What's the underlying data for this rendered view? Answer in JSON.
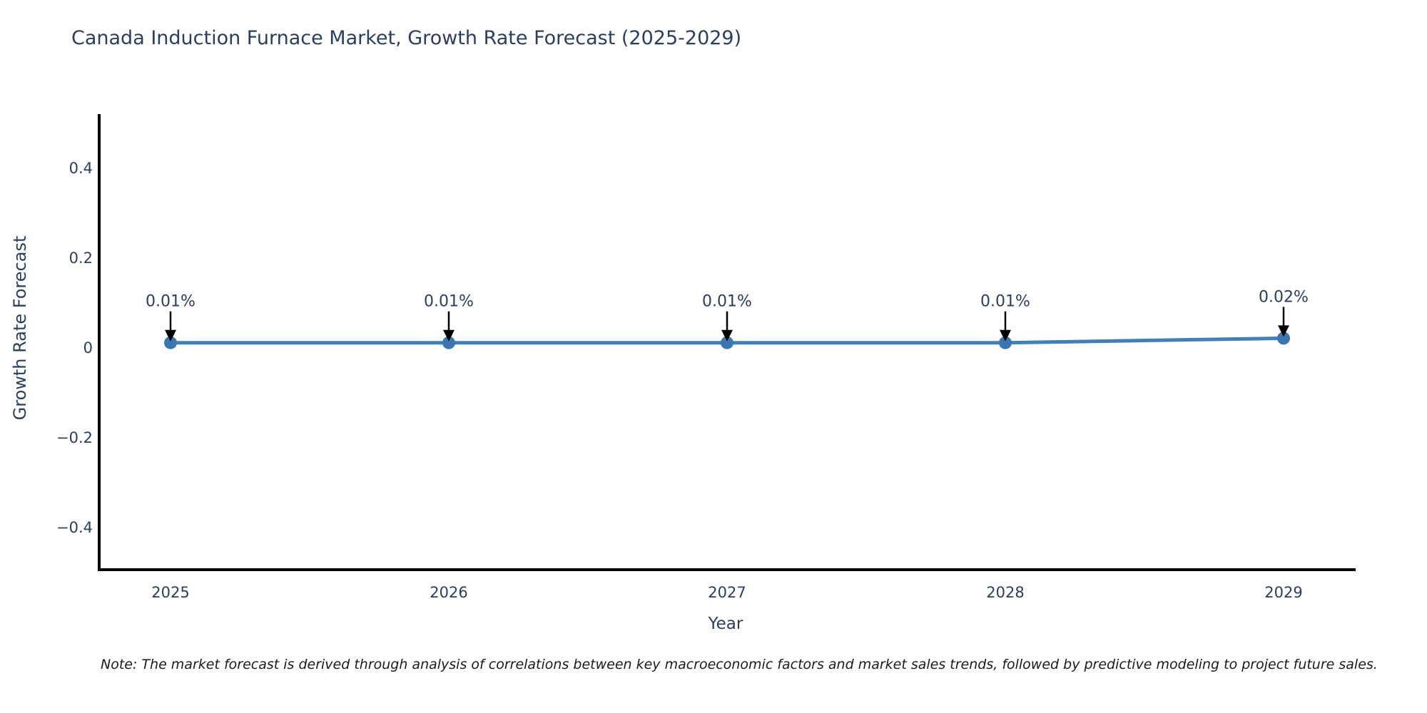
{
  "page": {
    "title": "Canada Induction Furnace Market, Growth Rate Forecast (2025-2029)",
    "note": "Note: The market forecast is derived through analysis of correlations between key macroeconomic factors and market sales trends, followed by predictive modeling to project future sales."
  },
  "chart_data": {
    "type": "line",
    "title": "Canada Induction Furnace Market, Growth Rate Forecast (2025-2029)",
    "x": [
      2025,
      2026,
      2027,
      2028,
      2029
    ],
    "xtick_labels": [
      "2025",
      "2026",
      "2027",
      "2028",
      "2029"
    ],
    "series": [
      {
        "name": "Growth Rate Forecast",
        "values": [
          0.01,
          0.01,
          0.01,
          0.01,
          0.02
        ],
        "point_labels": [
          "0.01%",
          "0.01%",
          "0.01%",
          "0.01%",
          "0.02%"
        ]
      }
    ],
    "xlabel": "Year",
    "ylabel": "Growth Rate Forecast",
    "yticks": [
      0.4,
      0.2,
      0,
      -0.2,
      -0.4
    ],
    "ytick_labels": [
      "0.4",
      "0.2",
      "0",
      "−0.2",
      "−0.4"
    ],
    "ylim": [
      -0.5,
      0.52
    ],
    "grid": false,
    "legend_position": "none",
    "annotation_arrows": true,
    "colors": {
      "line": "#4180b5",
      "marker": "#3a76b0",
      "axis": "#000000",
      "chart_text": "#2a3f5f",
      "annotation_text": "#2a3f5f",
      "arrow": "#000000",
      "note_text": "#1a1a1a",
      "background": "#ffffff"
    }
  }
}
